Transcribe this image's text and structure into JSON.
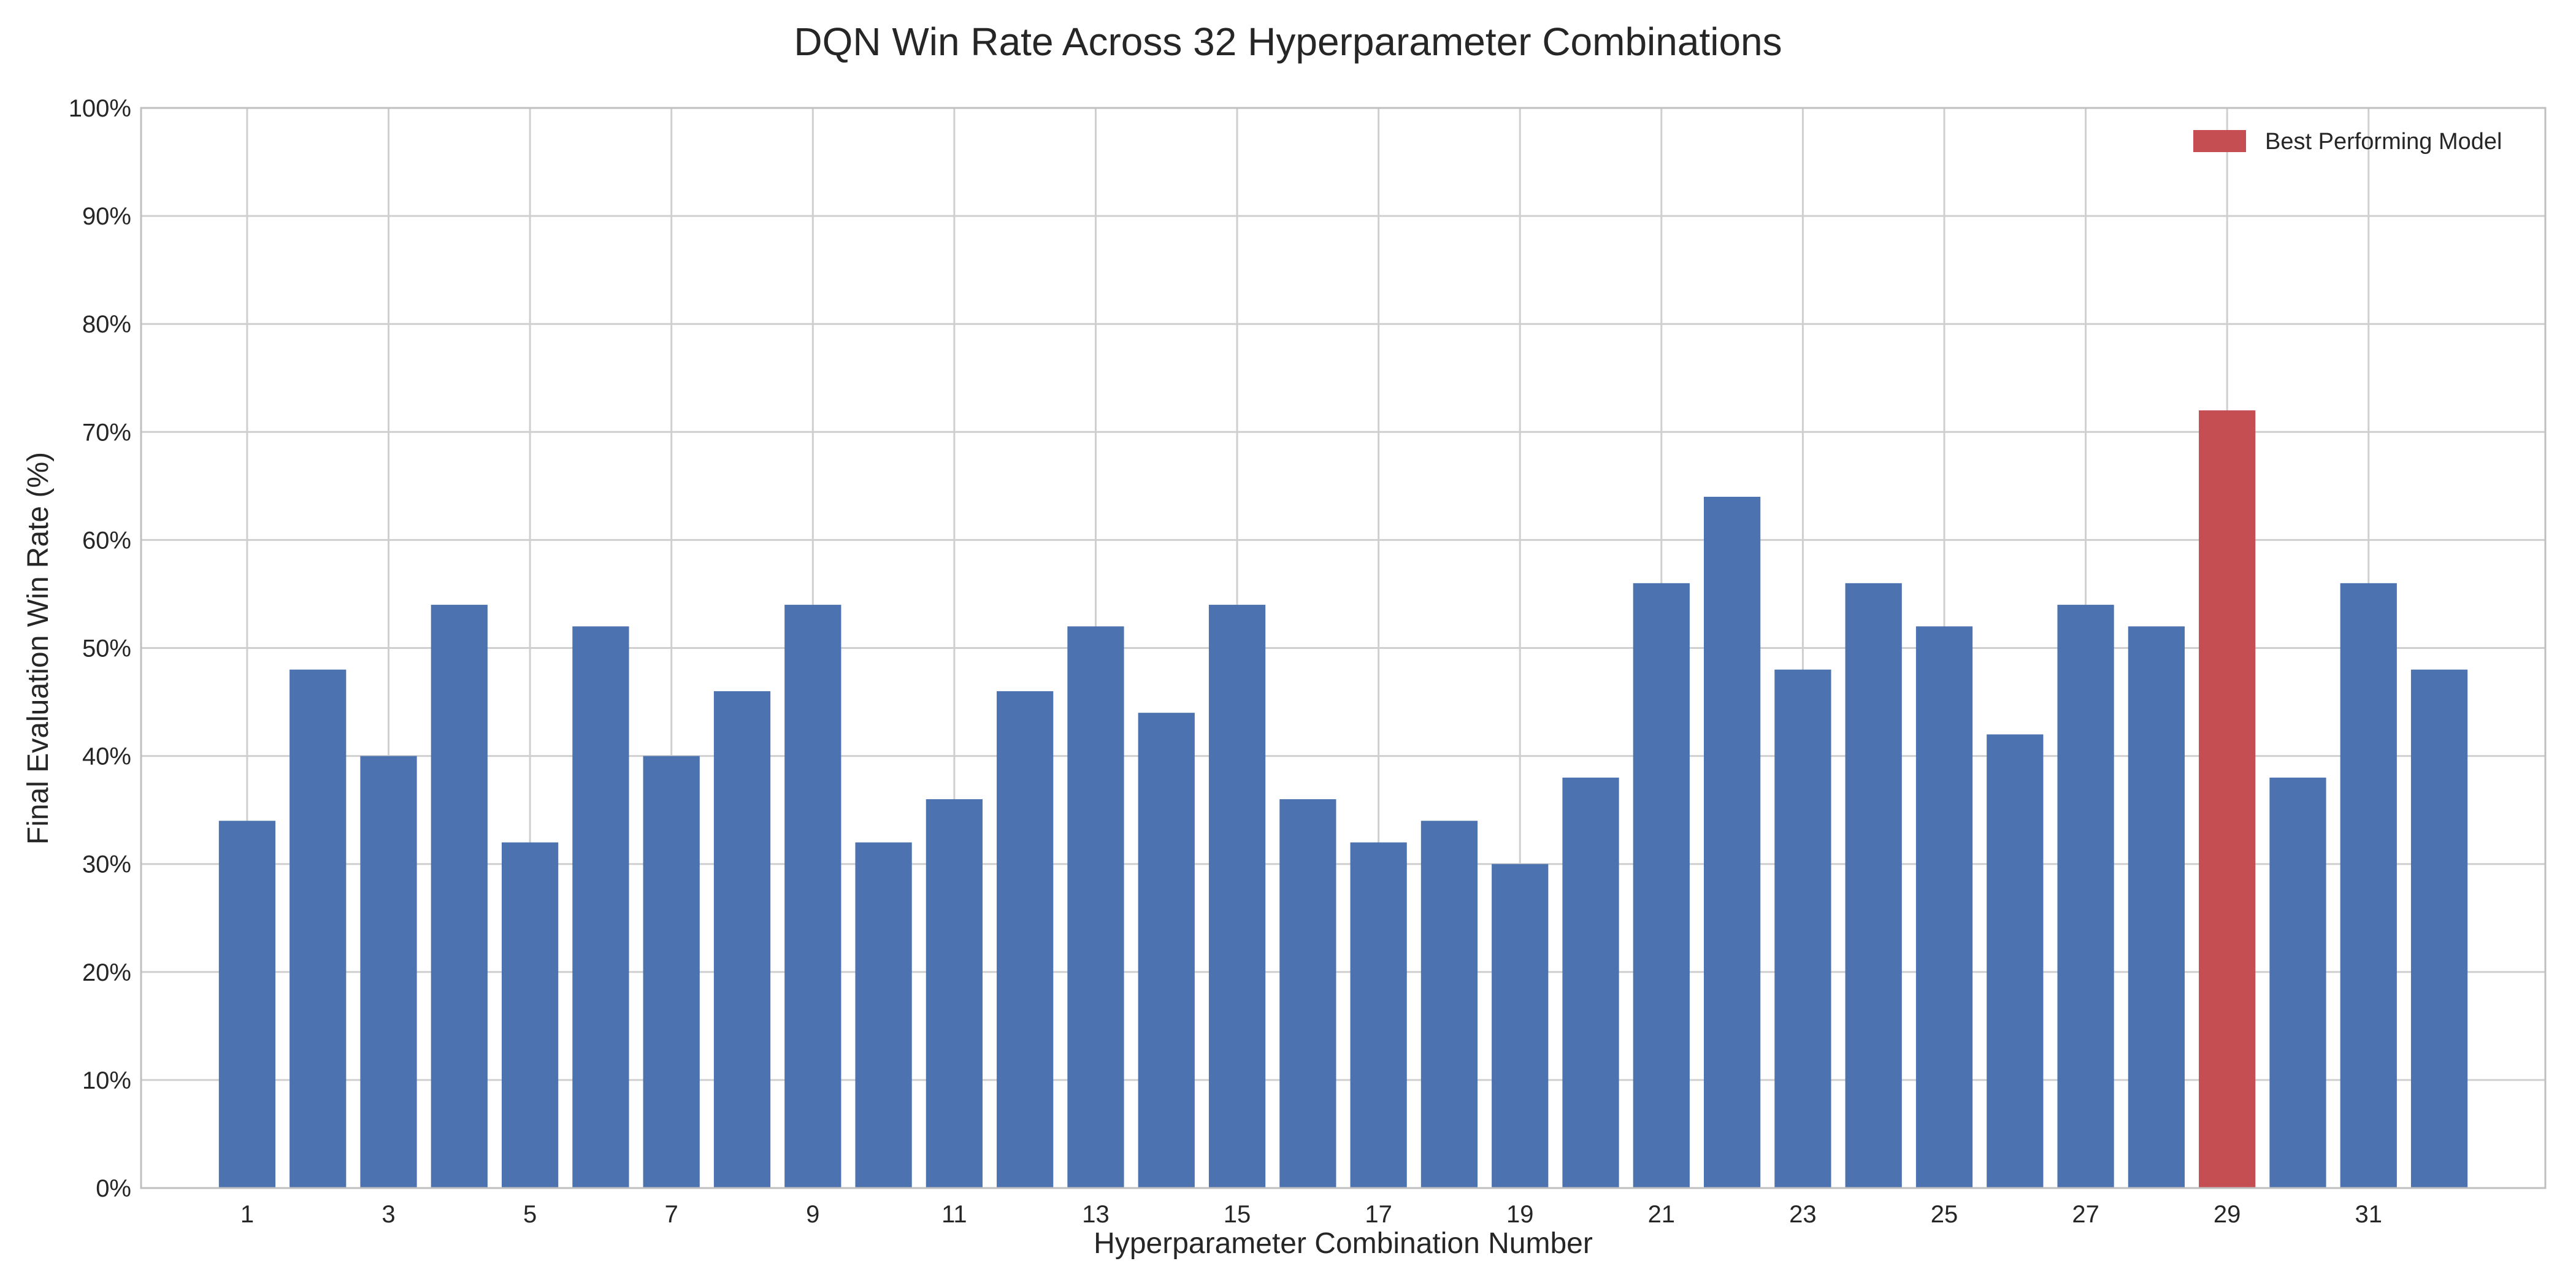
{
  "chart_data": {
    "type": "bar",
    "title": "DQN Win Rate Across 32 Hyperparameter Combinations",
    "xlabel": "Hyperparameter Combination Number",
    "ylabel": "Final Evaluation Win Rate (%)",
    "ylim": [
      0,
      100
    ],
    "yticks": [
      0,
      10,
      20,
      30,
      40,
      50,
      60,
      70,
      80,
      90,
      100
    ],
    "ytick_labels": [
      "0%",
      "10%",
      "20%",
      "30%",
      "40%",
      "50%",
      "60%",
      "70%",
      "80%",
      "90%",
      "100%"
    ],
    "xlim": [
      -0.5,
      33.5
    ],
    "xticks": [
      1,
      3,
      5,
      7,
      9,
      11,
      13,
      15,
      17,
      19,
      21,
      23,
      25,
      27,
      29,
      31
    ],
    "xtick_labels": [
      "1",
      "3",
      "5",
      "7",
      "9",
      "11",
      "13",
      "15",
      "17",
      "19",
      "21",
      "23",
      "25",
      "27",
      "29",
      "31"
    ],
    "categories": [
      1,
      2,
      3,
      4,
      5,
      6,
      7,
      8,
      9,
      10,
      11,
      12,
      13,
      14,
      15,
      16,
      17,
      18,
      19,
      20,
      21,
      22,
      23,
      24,
      25,
      26,
      27,
      28,
      29,
      30,
      31,
      32
    ],
    "values": [
      34,
      48,
      40,
      54,
      32,
      52,
      40,
      46,
      54,
      32,
      36,
      46,
      52,
      44,
      54,
      36,
      32,
      34,
      30,
      38,
      56,
      64,
      48,
      56,
      52,
      42,
      54,
      52,
      72,
      38,
      56,
      48
    ],
    "highlight_index": 28,
    "grid": true,
    "legend": {
      "position": "top-right",
      "entries": [
        {
          "label": "Best Performing Model",
          "color": "#c44e52"
        }
      ]
    },
    "colors": {
      "bar": "#4c72b0",
      "highlight": "#c44e52"
    }
  }
}
